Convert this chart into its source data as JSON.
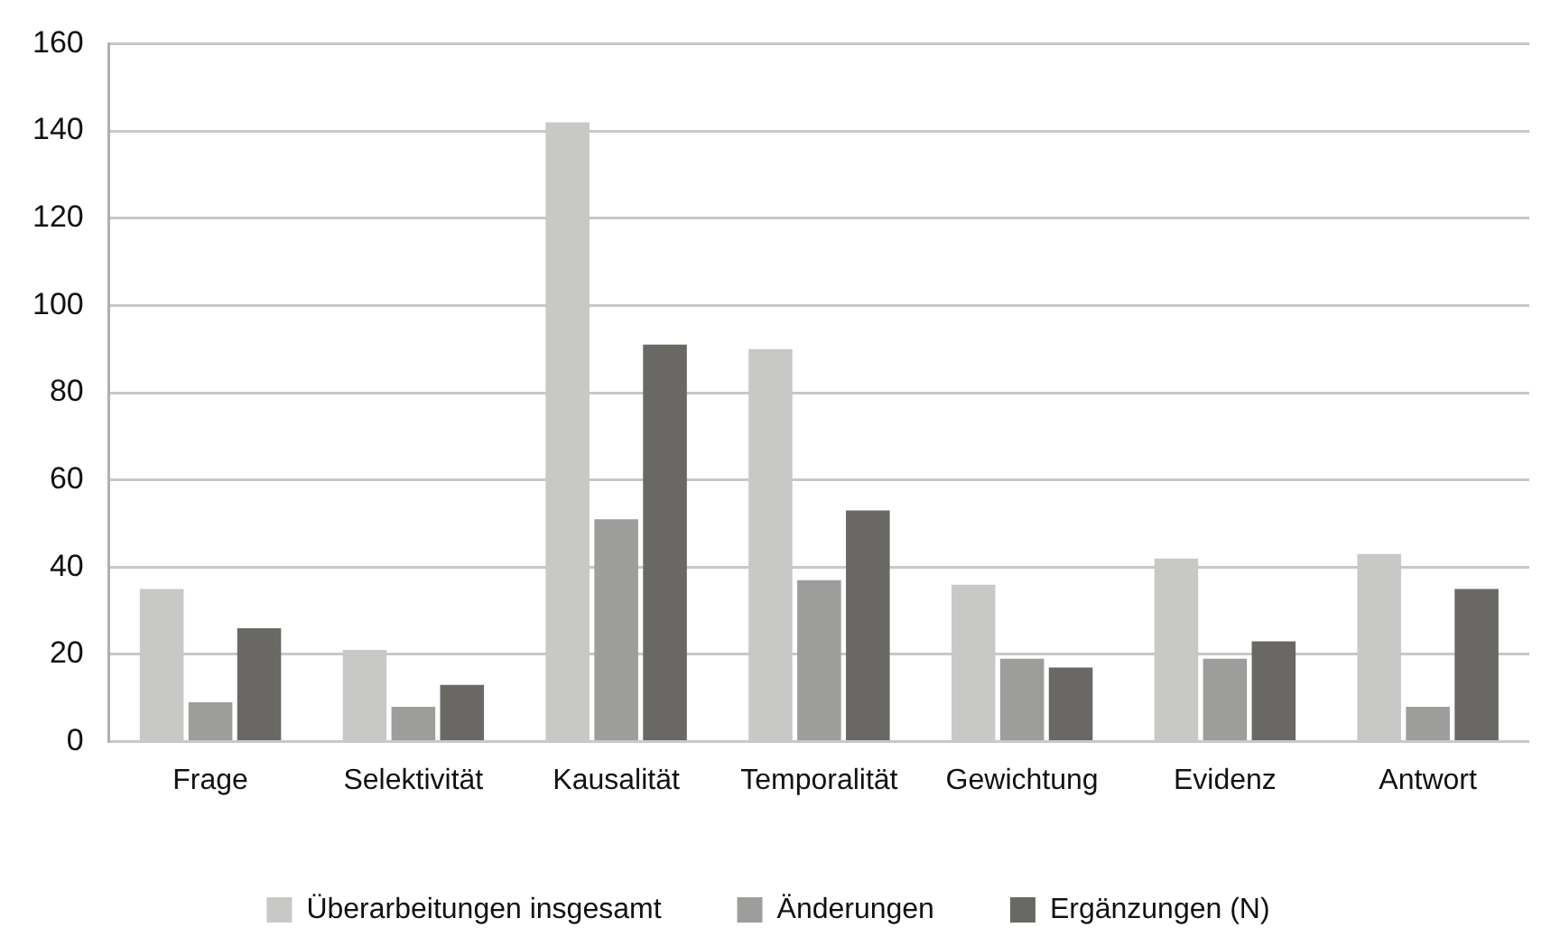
{
  "chart_data": {
    "type": "bar",
    "categories": [
      "Frage",
      "Selektivität",
      "Kausalität",
      "Temporalität",
      "Gewichtung",
      "Evidenz",
      "Antwort"
    ],
    "series": [
      {
        "name": "Überarbeitungen insgesamt",
        "color": "#c8c8c6",
        "values": [
          35,
          21,
          142,
          90,
          36,
          42,
          43
        ]
      },
      {
        "name": "Änderungen",
        "color": "#9d9d9b",
        "values": [
          9,
          8,
          51,
          37,
          19,
          19,
          8
        ]
      },
      {
        "name": "Ergänzungen (N)",
        "color": "#696864",
        "values": [
          26,
          13,
          91,
          53,
          17,
          23,
          35
        ]
      }
    ],
    "ylim": [
      0,
      160
    ],
    "yticks": [
      0,
      20,
      40,
      60,
      80,
      100,
      120,
      140,
      160
    ],
    "grid": "y",
    "legend": "bottom"
  }
}
